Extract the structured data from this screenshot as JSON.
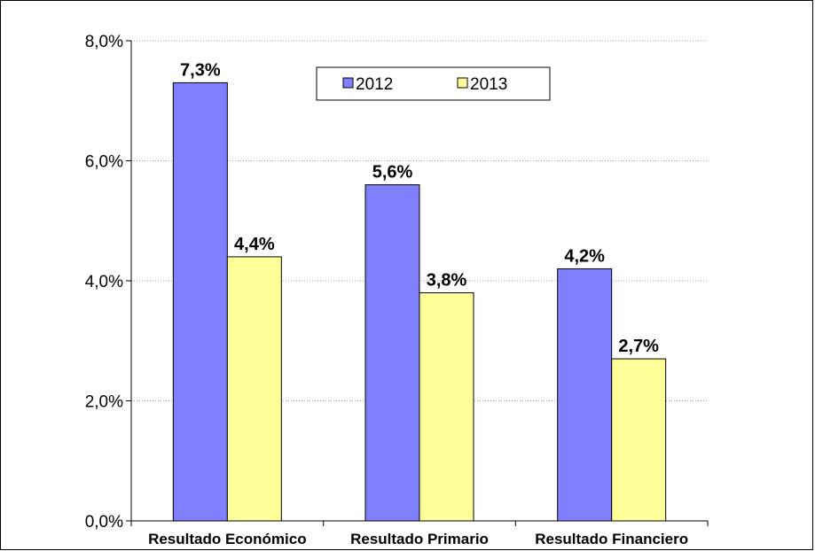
{
  "chart_data": {
    "type": "bar",
    "title": "",
    "xlabel": "",
    "ylabel": "",
    "categories": [
      "Resultado Económico",
      "Resultado Primario",
      "Resultado Financiero"
    ],
    "series": [
      {
        "name": "2012",
        "values": [
          7.3,
          5.6,
          4.2
        ],
        "labels": [
          "7,3%",
          "5,6%",
          "4,2%"
        ],
        "color": "#8080FF"
      },
      {
        "name": "2013",
        "values": [
          4.4,
          3.8,
          2.7
        ],
        "labels": [
          "4,4%",
          "3,8%",
          "2,7%"
        ],
        "color": "#FFFF99"
      }
    ],
    "ylim": [
      0,
      8
    ],
    "yticks": [
      0,
      2,
      4,
      6,
      8
    ],
    "ytick_labels": [
      "0,0%",
      "2,0%",
      "4,0%",
      "6,0%",
      "8,0%"
    ],
    "grid": true,
    "legend_position": "top-center"
  }
}
